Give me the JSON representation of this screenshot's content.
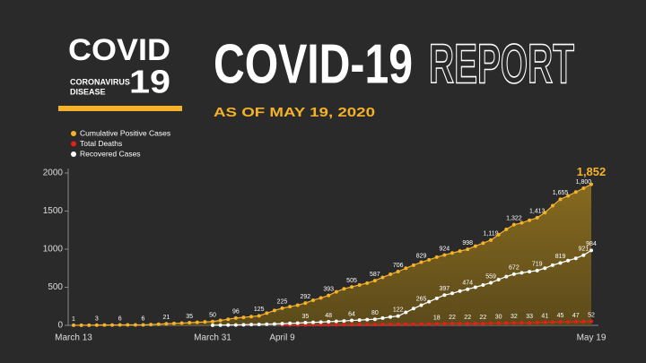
{
  "logo": {
    "word": "COVID",
    "line1": "CORONAVIRUS",
    "line2": "DISEASE",
    "number": "19"
  },
  "header": {
    "title_bold": "COVID-19",
    "title_outline": "REPORT",
    "subtitle": "AS OF MAY 19, 2020"
  },
  "chart_data": {
    "type": "line",
    "categories": [
      "March 13",
      null,
      null,
      null,
      null,
      null,
      null,
      null,
      null,
      null,
      null,
      null,
      null,
      null,
      null,
      null,
      null,
      null,
      "March 31",
      null,
      null,
      null,
      null,
      null,
      null,
      null,
      null,
      "April 9",
      null,
      null,
      null,
      null,
      null,
      null,
      null,
      null,
      null,
      null,
      null,
      null,
      null,
      null,
      null,
      null,
      null,
      null,
      null,
      null,
      null,
      null,
      null,
      null,
      null,
      null,
      null,
      null,
      null,
      null,
      null,
      null,
      null,
      null,
      null,
      null,
      null,
      null,
      null,
      "May 19"
    ],
    "ylim": [
      0,
      2000
    ],
    "yticks": [
      0,
      500,
      1000,
      1500,
      2000
    ],
    "grid": false,
    "area": true,
    "series": [
      {
        "name": "Cumulative Positive Cases",
        "color": "#f4b22a",
        "values": [
          1,
          2,
          2,
          3,
          4,
          5,
          6,
          6,
          6,
          6,
          10,
          15,
          21,
          25,
          30,
          35,
          40,
          45,
          50,
          65,
          80,
          96,
          105,
          115,
          125,
          160,
          195,
          225,
          245,
          265,
          292,
          330,
          360,
          393,
          440,
          480,
          505,
          530,
          555,
          587,
          630,
          670,
          706,
          750,
          790,
          829,
          860,
          895,
          924,
          950,
          975,
          998,
          1040,
          1080,
          1119,
          1190,
          1260,
          1322,
          1345,
          1380,
          1413,
          1480,
          1570,
          1655,
          1700,
          1750,
          1800,
          1852
        ],
        "value_labels": [
          "1",
          null,
          null,
          "3",
          null,
          null,
          "6",
          null,
          null,
          "6",
          null,
          null,
          "21",
          null,
          null,
          "35",
          null,
          null,
          "50",
          null,
          null,
          "96",
          null,
          null,
          "125",
          null,
          null,
          "225",
          null,
          null,
          "292",
          null,
          null,
          "393",
          null,
          null,
          "505",
          null,
          null,
          "587",
          null,
          null,
          "706",
          null,
          null,
          "829",
          null,
          null,
          "924",
          null,
          null,
          "998",
          null,
          null,
          "1,119",
          null,
          null,
          "1,322",
          null,
          null,
          "1,413",
          null,
          null,
          "1,655",
          null,
          null,
          "1,800",
          "1,852"
        ]
      },
      {
        "name": "Total Deaths",
        "color": "#e3211b",
        "values": [
          null,
          null,
          null,
          null,
          null,
          null,
          null,
          null,
          null,
          null,
          null,
          null,
          null,
          null,
          null,
          null,
          null,
          null,
          null,
          null,
          null,
          null,
          null,
          null,
          null,
          null,
          null,
          4,
          5,
          5,
          6,
          7,
          7,
          8,
          8,
          9,
          9,
          10,
          10,
          11,
          12,
          12,
          13,
          14,
          15,
          16,
          17,
          18,
          20,
          22,
          22,
          22,
          22,
          22,
          26,
          30,
          31,
          32,
          32,
          33,
          37,
          41,
          43,
          45,
          46,
          47,
          50,
          52
        ],
        "value_labels": [
          null,
          null,
          null,
          null,
          null,
          null,
          null,
          null,
          null,
          null,
          null,
          null,
          null,
          null,
          null,
          null,
          null,
          null,
          null,
          null,
          null,
          null,
          null,
          null,
          null,
          null,
          null,
          null,
          null,
          null,
          null,
          null,
          null,
          null,
          null,
          null,
          null,
          null,
          null,
          null,
          null,
          null,
          null,
          null,
          null,
          null,
          null,
          "18",
          null,
          "22",
          null,
          "22",
          null,
          "22",
          null,
          "30",
          null,
          "32",
          null,
          "33",
          null,
          "41",
          null,
          "45",
          null,
          "47",
          null,
          "52"
        ]
      },
      {
        "name": "Recovered Cases",
        "color": "#ffffff",
        "values": [
          null,
          null,
          null,
          null,
          null,
          null,
          null,
          null,
          null,
          null,
          null,
          null,
          null,
          null,
          null,
          null,
          null,
          null,
          2,
          3,
          4,
          5,
          8,
          10,
          12,
          15,
          18,
          22,
          26,
          30,
          35,
          39,
          43,
          48,
          53,
          58,
          64,
          69,
          75,
          80,
          95,
          110,
          122,
          170,
          220,
          265,
          310,
          355,
          397,
          420,
          450,
          474,
          500,
          530,
          559,
          600,
          640,
          672,
          690,
          705,
          719,
          750,
          790,
          819,
          850,
          880,
          921,
          984
        ],
        "value_labels": [
          null,
          null,
          null,
          null,
          null,
          null,
          null,
          null,
          null,
          null,
          null,
          null,
          null,
          null,
          null,
          null,
          null,
          null,
          null,
          null,
          null,
          null,
          null,
          null,
          null,
          null,
          null,
          null,
          null,
          null,
          "35",
          null,
          null,
          "48",
          null,
          null,
          "64",
          null,
          null,
          "80",
          null,
          null,
          "122",
          null,
          null,
          "265",
          null,
          null,
          "397",
          null,
          null,
          "474",
          null,
          null,
          "559",
          null,
          null,
          "672",
          null,
          null,
          "719",
          null,
          null,
          "819",
          null,
          null,
          "921",
          "984"
        ]
      }
    ]
  }
}
